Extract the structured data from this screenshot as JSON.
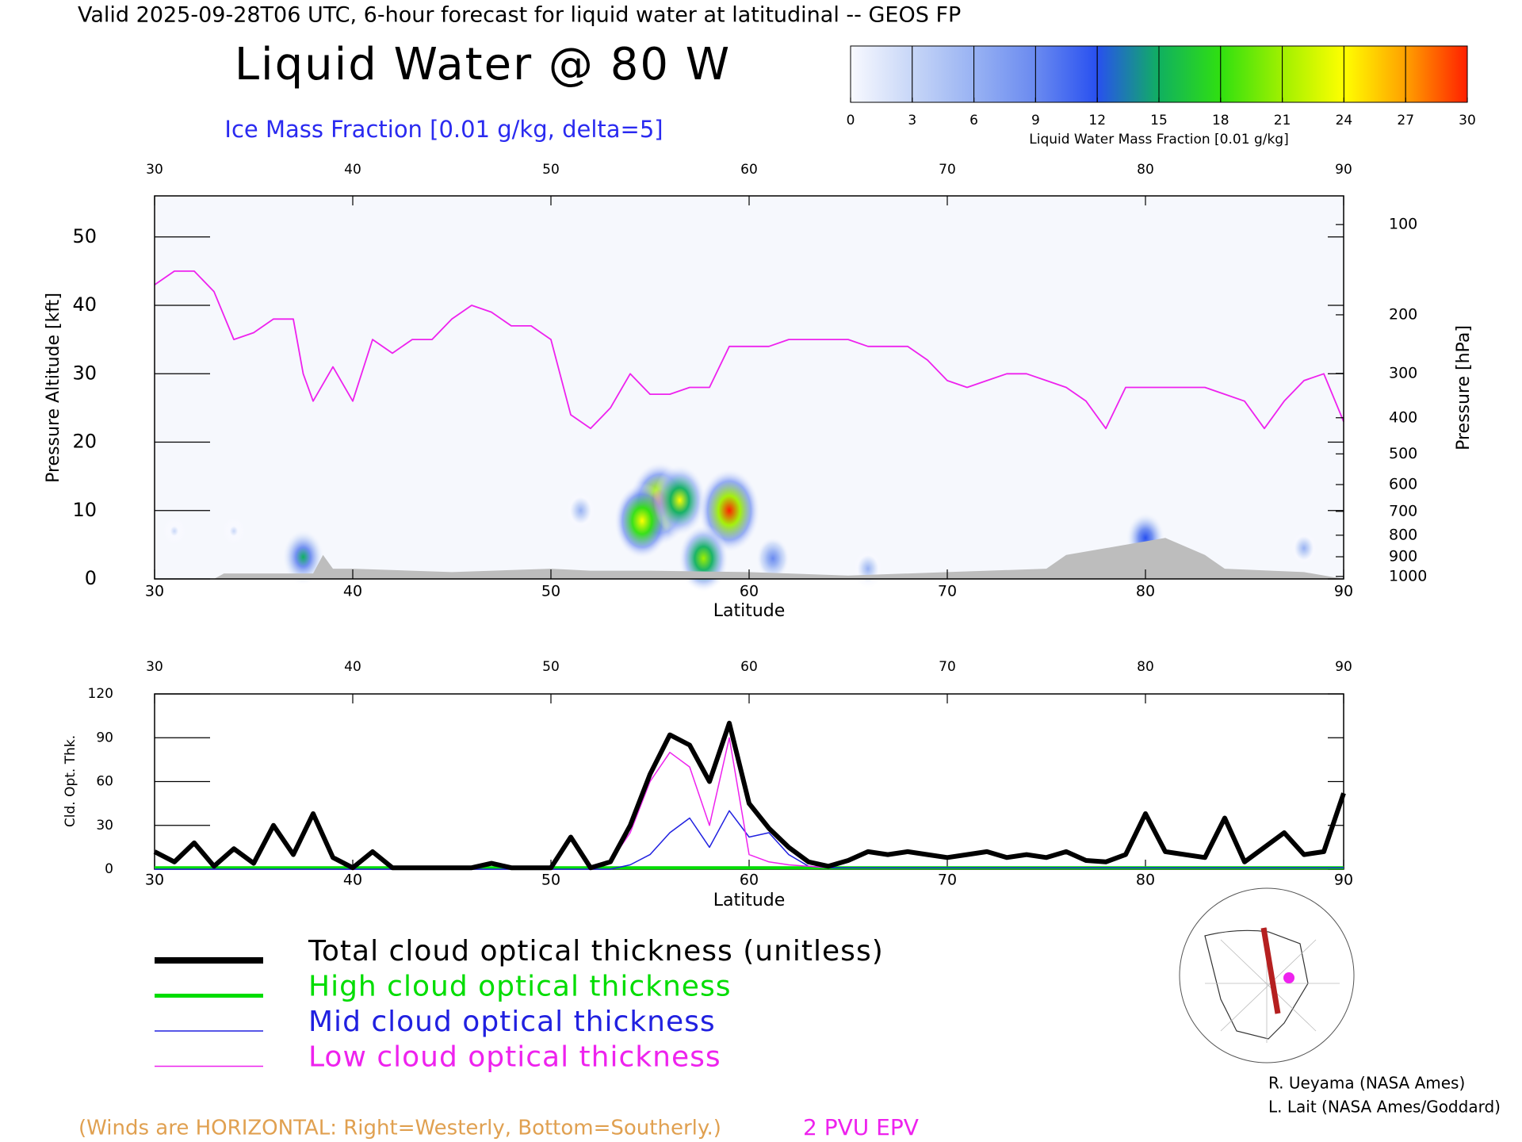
{
  "header": "Valid 2025-09-28T06 UTC, 6-hour forecast for liquid water at latitudinal -- GEOS FP",
  "credits": [
    "R. Ueyama (NASA Ames)",
    "L. Lait (NASA Ames/Goddard)"
  ],
  "footer_note": "(Winds are HORIZONTAL: Right=Westerly, Bottom=Southerly.)",
  "footer_pv": "2 PVU EPV",
  "chart_data": [
    {
      "type": "cross_section",
      "title": "Liquid Water @ 80 W",
      "subtitle": "Ice Mass Fraction [0.01 g/kg, delta=5]",
      "x_label": "Latitude",
      "y_label": "Pressure Altitude [kft]",
      "y2_label": "Pressure [hPa]",
      "xlim": [
        30,
        90
      ],
      "xticks": [
        30,
        40,
        50,
        60,
        70,
        80,
        90
      ],
      "ylim": [
        0,
        56
      ],
      "yticks": [
        0,
        10,
        20,
        30,
        40,
        50
      ],
      "y2scale": "pressure",
      "y2ticks": [
        100,
        200,
        300,
        400,
        500,
        600,
        700,
        800,
        900,
        1000
      ],
      "colorbar": {
        "label": "Liquid Water Mass Fraction [0.01 g/kg]",
        "ticks": [
          0,
          3,
          6,
          9,
          12,
          15,
          18,
          21,
          24,
          27,
          30
        ],
        "colors": [
          "#f8f9ff",
          "#c7d6f7",
          "#98b2f3",
          "#6a8af0",
          "#2850f0",
          "#10b060",
          "#30e010",
          "#a0f000",
          "#ffff00",
          "#ffa000",
          "#ff2000"
        ]
      },
      "liquid_water": [
        {
          "lat": 55.5,
          "kft": 11,
          "value": 30
        },
        {
          "lat": 54.6,
          "kft": 8.5,
          "value": 26
        },
        {
          "lat": 56.5,
          "kft": 11.5,
          "value": 24
        },
        {
          "lat": 59,
          "kft": 10,
          "value": 30
        },
        {
          "lat": 57.7,
          "kft": 3,
          "value": 22
        },
        {
          "lat": 61.2,
          "kft": 3,
          "value": 10
        },
        {
          "lat": 37.5,
          "kft": 3.2,
          "value": 16
        },
        {
          "lat": 51.5,
          "kft": 10,
          "value": 8
        },
        {
          "lat": 80,
          "kft": 6,
          "value": 14
        },
        {
          "lat": 66,
          "kft": 1.5,
          "value": 8
        },
        {
          "lat": 88,
          "kft": 4.5,
          "value": 6
        },
        {
          "lat": 31,
          "kft": 7,
          "value": 3
        },
        {
          "lat": 34,
          "kft": 7,
          "value": 3
        }
      ],
      "terrain": {
        "name": "terrain",
        "color": "#bdbdbd",
        "x": [
          30,
          33,
          33.5,
          38,
          38.5,
          39,
          40,
          45,
          50,
          52,
          55,
          60,
          65,
          70,
          75,
          76,
          79,
          80,
          81,
          83,
          84,
          88,
          90
        ],
        "values": [
          0,
          0,
          0.8,
          0.8,
          3.5,
          1.5,
          1.5,
          1,
          1.5,
          1.2,
          1.2,
          1,
          0.5,
          1,
          1.5,
          3.5,
          5,
          5.5,
          6,
          3.5,
          1.5,
          1,
          0
        ]
      },
      "pv_line": {
        "name": "2 PVU EPV",
        "color": "#ee22ee",
        "x": [
          30,
          31,
          32,
          33,
          34,
          35,
          36,
          37,
          37.5,
          38,
          39,
          40,
          41,
          42,
          43,
          44,
          45,
          46,
          47,
          48,
          49,
          50,
          51,
          52,
          53,
          54,
          55,
          56,
          57,
          58,
          59,
          60,
          61,
          62,
          63,
          64,
          65,
          66,
          67,
          68,
          69,
          70,
          71,
          72,
          73,
          74,
          75,
          76,
          77,
          78,
          79,
          80,
          81,
          82,
          83,
          84,
          85,
          86,
          87,
          88,
          89,
          90
        ],
        "values": [
          43,
          45,
          45,
          42,
          35,
          36,
          38,
          38,
          30,
          26,
          31,
          26,
          35,
          33,
          35,
          35,
          38,
          40,
          39,
          37,
          37,
          35,
          24,
          22,
          25,
          30,
          27,
          27,
          28,
          28,
          34,
          34,
          34,
          35,
          35,
          35,
          35,
          34,
          34,
          34,
          32,
          29,
          28,
          29,
          30,
          30,
          29,
          28,
          26,
          22,
          28,
          28,
          28,
          28,
          28,
          27,
          26,
          22,
          26,
          29,
          30,
          23
        ]
      }
    },
    {
      "type": "line",
      "x_label": "Latitude",
      "y_label": "Cld. Opt. Thk.",
      "xlim": [
        30,
        90
      ],
      "xticks": [
        30,
        40,
        50,
        60,
        70,
        80,
        90
      ],
      "ylim": [
        0,
        120
      ],
      "yticks": [
        0,
        30,
        60,
        90,
        120
      ],
      "x": [
        30,
        31,
        32,
        33,
        34,
        35,
        36,
        37,
        38,
        39,
        40,
        41,
        42,
        43,
        44,
        45,
        46,
        47,
        48,
        49,
        50,
        51,
        52,
        53,
        54,
        55,
        56,
        57,
        58,
        59,
        60,
        61,
        62,
        63,
        64,
        65,
        66,
        67,
        68,
        69,
        70,
        71,
        72,
        73,
        74,
        75,
        76,
        77,
        78,
        79,
        80,
        81,
        82,
        83,
        84,
        85,
        86,
        87,
        88,
        89,
        90
      ],
      "series": [
        {
          "name": "Total cloud optical thickness (unitless)",
          "color": "#000000",
          "values": [
            12,
            5,
            18,
            2,
            14,
            4,
            30,
            10,
            38,
            8,
            1,
            12,
            1,
            1,
            1,
            1,
            1,
            4,
            1,
            1,
            1,
            22,
            1,
            5,
            30,
            65,
            92,
            85,
            60,
            100,
            45,
            28,
            15,
            5,
            2,
            6,
            12,
            10,
            12,
            10,
            8,
            10,
            12,
            8,
            10,
            8,
            12,
            6,
            5,
            10,
            38,
            12,
            10,
            8,
            35,
            5,
            15,
            25,
            10,
            12,
            52
          ]
        },
        {
          "name": "High cloud optical thickness",
          "color": "#00dd00",
          "values": [
            1,
            1,
            1,
            1,
            1,
            1,
            1,
            1,
            1,
            1,
            1,
            1,
            1,
            1,
            1,
            1,
            1,
            1,
            1,
            1,
            1,
            1,
            1,
            1,
            1,
            1,
            1,
            1,
            1,
            1,
            1,
            1,
            1,
            1,
            1,
            1,
            1,
            1,
            1,
            1,
            1,
            1,
            1,
            1,
            1,
            1,
            1,
            1,
            1,
            1,
            1,
            1,
            1,
            1,
            1,
            1,
            1,
            1,
            1,
            1,
            1
          ]
        },
        {
          "name": "Mid cloud optical thickness",
          "color": "#2020e0",
          "values": [
            0,
            0,
            0,
            0,
            0,
            0,
            0,
            0,
            0,
            0,
            0,
            0,
            0,
            0,
            0,
            0,
            0,
            0,
            0,
            0,
            0,
            0,
            0,
            0,
            3,
            10,
            25,
            35,
            15,
            40,
            22,
            25,
            10,
            2,
            1,
            1,
            1,
            1,
            1,
            1,
            1,
            1,
            1,
            1,
            1,
            1,
            1,
            1,
            1,
            1,
            1,
            1,
            1,
            1,
            1,
            1,
            1,
            1,
            1,
            1,
            1
          ]
        },
        {
          "name": "Low cloud optical thickness",
          "color": "#ee22ee",
          "values": [
            12,
            5,
            18,
            2,
            14,
            4,
            30,
            10,
            38,
            8,
            1,
            12,
            1,
            1,
            1,
            1,
            1,
            4,
            1,
            1,
            1,
            22,
            1,
            5,
            25,
            60,
            80,
            70,
            30,
            90,
            10,
            5,
            3,
            2,
            1,
            5,
            11,
            9,
            11,
            9,
            7,
            9,
            11,
            7,
            9,
            7,
            11,
            5,
            4,
            9,
            37,
            11,
            9,
            7,
            34,
            4,
            14,
            24,
            9,
            11,
            50
          ]
        }
      ]
    }
  ]
}
